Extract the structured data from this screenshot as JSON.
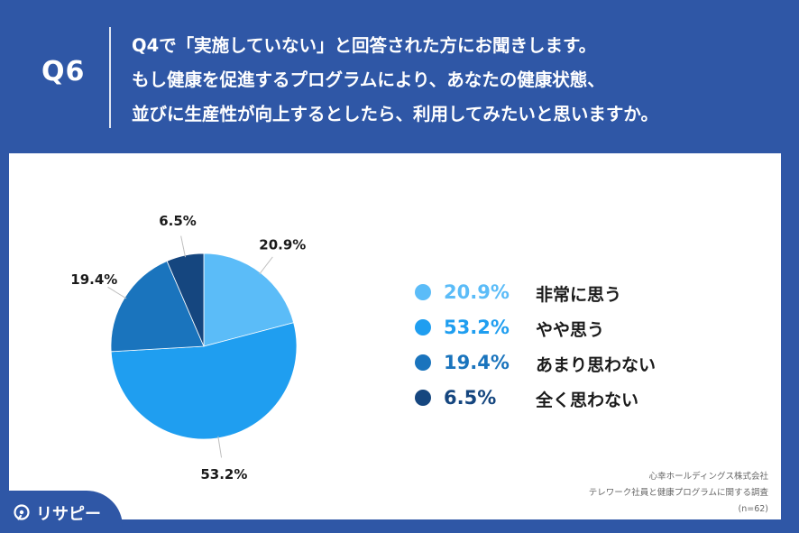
{
  "header": {
    "q_label": "Q6",
    "question_lines": [
      "Q4で「実施していない」と回答された方にお聞きします。",
      "もし健康を促進するプログラムにより、あなたの健康状態、",
      "並びに生産性が向上するとしたら、利用してみたいと思いますか。"
    ]
  },
  "chart_data": {
    "type": "pie",
    "categories": [
      "非常に思う",
      "やや思う",
      "あまり思わない",
      "全く思わない"
    ],
    "values": [
      20.9,
      53.2,
      19.4,
      6.5
    ],
    "data_labels": [
      "20.9%",
      "53.2%",
      "19.4%",
      "6.5%"
    ],
    "colors": [
      "#5bbcf8",
      "#1f9ef0",
      "#1a74bd",
      "#15467f"
    ],
    "start_angle_deg": 0,
    "direction": "clockwise",
    "legend_position": "right"
  },
  "legend": {
    "items": [
      {
        "pct": "20.9%",
        "label": "非常に思う",
        "color": "#5bbcf8"
      },
      {
        "pct": "53.2%",
        "label": "やや思う",
        "color": "#1f9ef0"
      },
      {
        "pct": "19.4%",
        "label": "あまり思わない",
        "color": "#1a74bd"
      },
      {
        "pct": "6.5%",
        "label": "全く思わない",
        "color": "#15467f"
      }
    ]
  },
  "source": {
    "line1": "心幸ホールディングス株式会社",
    "line2": "テレワーク社員と健康プログラムに関する調査",
    "line3": "(n=62)"
  },
  "brand": {
    "logo_text": "リサピー",
    "logo_icon": "lightbulb-icon"
  }
}
